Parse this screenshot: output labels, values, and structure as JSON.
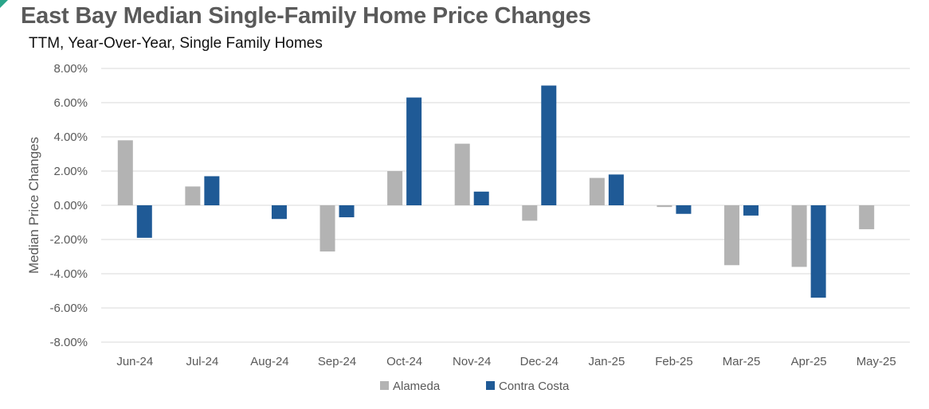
{
  "chart_data": {
    "type": "bar",
    "title": "East Bay Median Single-Family Home Price Changes",
    "subtitle": "TTM, Year-Over-Year, Single Family Homes",
    "xlabel": "",
    "ylabel": "Median Price Changes",
    "ylim": [
      -8,
      8
    ],
    "ytick_step": 2,
    "ytick_labels": [
      "8.00%",
      "6.00%",
      "4.00%",
      "2.00%",
      "0.00%",
      "-2.00%",
      "-4.00%",
      "-6.00%",
      "-8.00%"
    ],
    "grid": "horizontal",
    "legend_position": "bottom",
    "categories": [
      "Jun-24",
      "Jul-24",
      "Aug-24",
      "Sep-24",
      "Oct-24",
      "Nov-24",
      "Dec-24",
      "Jan-25",
      "Feb-25",
      "Mar-25",
      "Apr-25",
      "May-25"
    ],
    "series": [
      {
        "name": "Alameda",
        "color": "#b3b3b3",
        "values": [
          3.8,
          1.1,
          null,
          -2.7,
          2.0,
          3.6,
          -0.9,
          1.6,
          -0.1,
          -3.5,
          -3.6,
          -1.4
        ]
      },
      {
        "name": "Contra Costa",
        "color": "#1f5a96",
        "values": [
          -1.9,
          1.7,
          -0.8,
          -0.7,
          6.3,
          0.8,
          7.0,
          1.8,
          -0.5,
          -0.6,
          -5.4,
          null
        ]
      }
    ]
  }
}
